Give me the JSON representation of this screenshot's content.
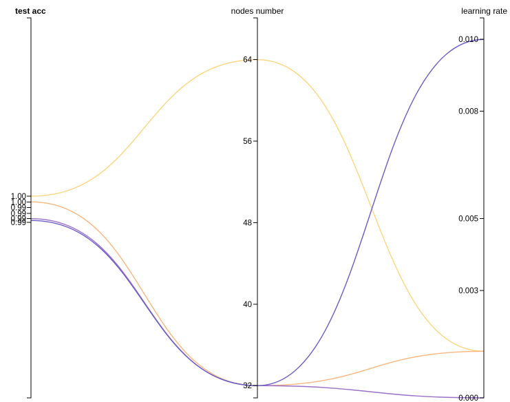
{
  "chart_data": {
    "type": "parallel_coordinates",
    "axes": [
      {
        "key": "test_acc",
        "title": "test acc",
        "tick_labels": [
          "1.00",
          "1.00",
          "0.99",
          "0.99",
          "0.99",
          "0.99"
        ]
      },
      {
        "key": "nodes_number",
        "title": "nodes number",
        "tick_labels": [
          "64",
          "56",
          "48",
          "40",
          "32"
        ],
        "tick_values": [
          64,
          56,
          48,
          40,
          32
        ],
        "range": [
          30.8,
          68.1
        ]
      },
      {
        "key": "learning_rate",
        "title": "learning rate",
        "tick_labels": [
          "0.010",
          "0.008",
          "0.005",
          "0.003",
          "0.000"
        ],
        "tick_values": [
          0.01,
          0.008,
          0.005,
          0.003,
          0.0
        ],
        "range": [
          0.0,
          0.0106
        ]
      }
    ],
    "series": [
      {
        "test_acc_rank": 0.0,
        "nodes_number": 64,
        "learning_rate": 0.0013,
        "color": "#fdd57e"
      },
      {
        "test_acc_rank": 0.22,
        "nodes_number": 32,
        "learning_rate": 0.0013,
        "color": "#f9b67f"
      },
      {
        "test_acc_rank": 0.86,
        "nodes_number": 32,
        "learning_rate": 0.0,
        "color": "#9a6fc7"
      },
      {
        "test_acc_rank": 0.93,
        "nodes_number": 32,
        "learning_rate": 0.01,
        "color": "#6a5cc4"
      }
    ]
  }
}
